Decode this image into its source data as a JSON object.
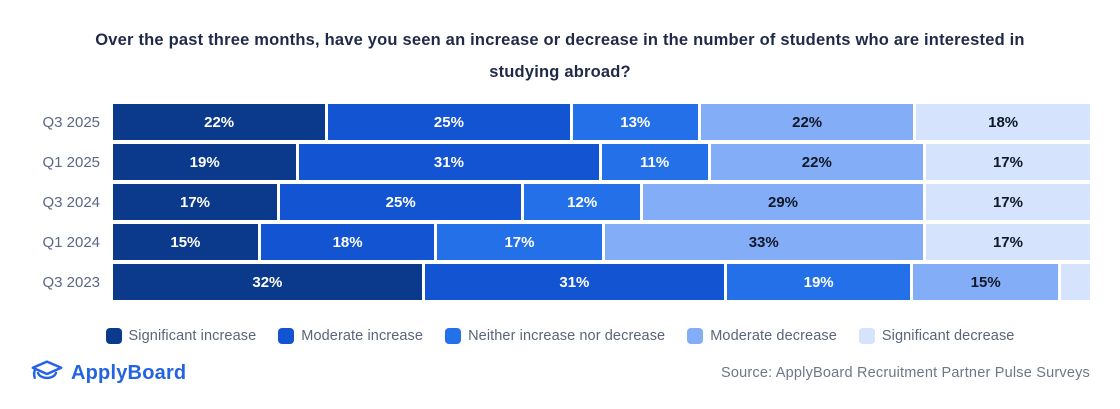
{
  "title": {
    "line1": "Over the past three months, have you seen an increase or decrease in the number of students who are interested in",
    "line2": "studying abroad?"
  },
  "chart_data": {
    "type": "bar",
    "variant": "horizontal-stacked",
    "title": "Over the past three months, have you seen an increase or decrease in the number of students who are interested in studying abroad?",
    "categories": [
      "Q3 2025",
      "Q1 2025",
      "Q3 2024",
      "Q1 2024",
      "Q3 2023"
    ],
    "series": [
      {
        "name": "Significant increase",
        "color": "#0B3A8D",
        "label_color": "#FFFFFF",
        "values": [
          22,
          19,
          17,
          15,
          32
        ]
      },
      {
        "name": "Moderate increase",
        "color": "#1254D1",
        "label_color": "#FFFFFF",
        "values": [
          25,
          31,
          25,
          18,
          31
        ]
      },
      {
        "name": "Neither increase nor decrease",
        "color": "#2470E9",
        "label_color": "#FFFFFF",
        "values": [
          13,
          11,
          12,
          17,
          19
        ]
      },
      {
        "name": "Moderate decrease",
        "color": "#84ADF8",
        "label_color": "#101828",
        "values": [
          22,
          22,
          29,
          33,
          15
        ]
      },
      {
        "name": "Significant decrease",
        "color": "#D5E3FC",
        "label_color": "#101828",
        "values": [
          18,
          17,
          17,
          17,
          3
        ]
      }
    ],
    "value_suffix": "%",
    "min_label_value": 5,
    "xlim": [
      0,
      100
    ],
    "grid": false,
    "legend_position": "bottom"
  },
  "footer": {
    "brand": "ApplyBoard",
    "source": "Source: ApplyBoard Recruitment Partner Pulse Surveys"
  },
  "colors": {
    "brand_blue": "#2464E4",
    "title_text": "#1F2A48",
    "axis_label": "#5A6785",
    "legend_text": "#5A6577",
    "source_text": "#6E7687"
  }
}
